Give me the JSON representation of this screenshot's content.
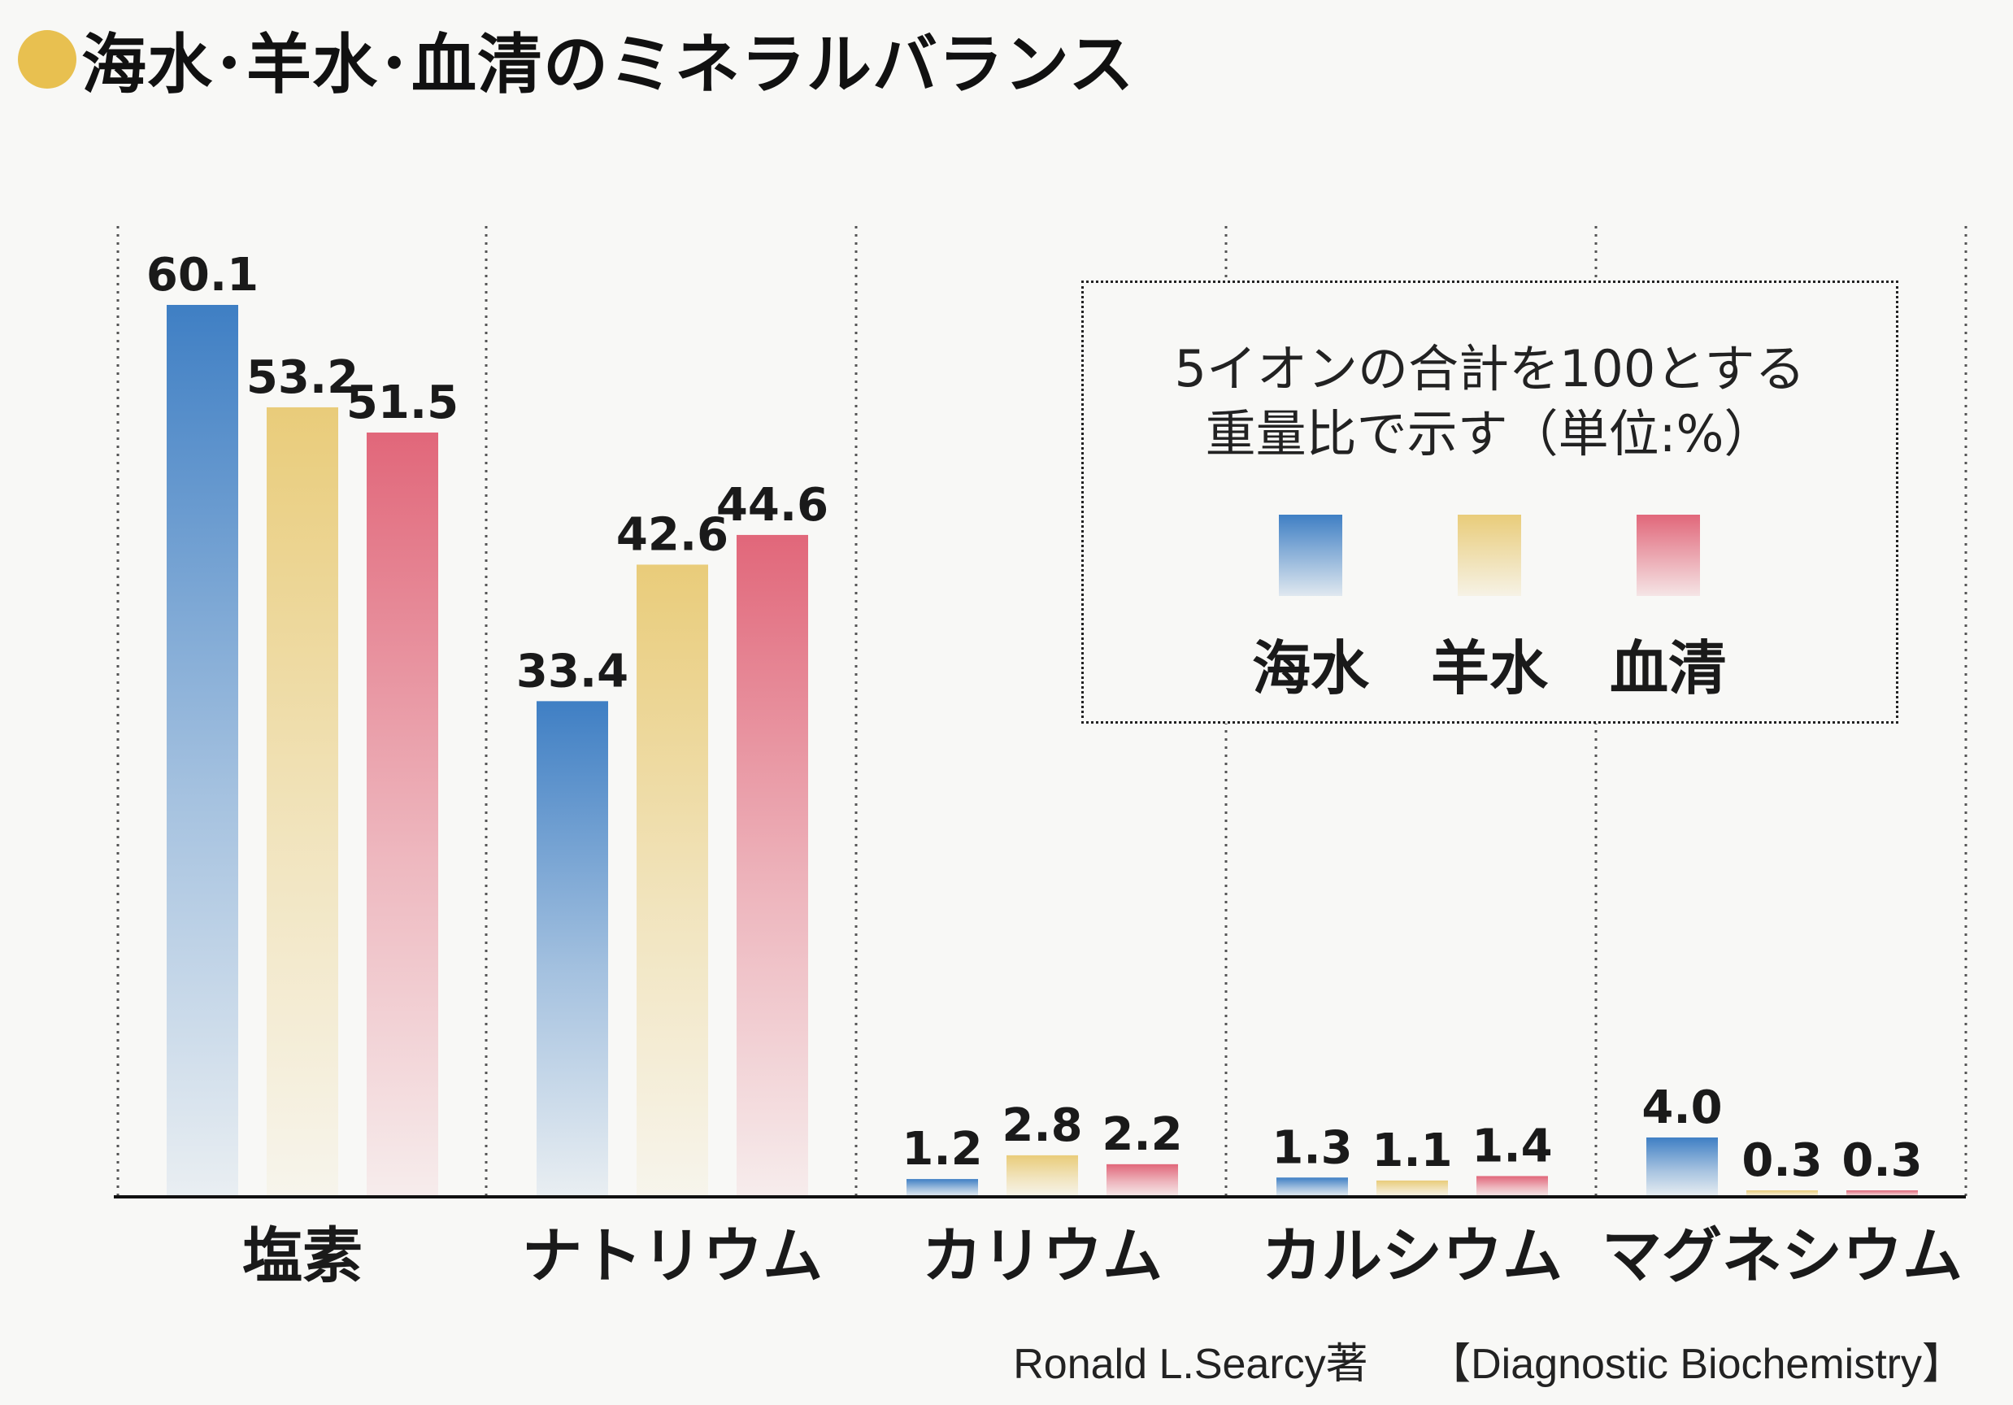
{
  "title": "海水･羊水･血清のミネラルバランス",
  "colors": {
    "title_dot": "#e8c050",
    "seawater": "#3f7fc4",
    "amniotic": "#e9cc7a",
    "serum": "#e1677a"
  },
  "legend": {
    "note_line1": "5イオンの合計を100とする",
    "note_line2": "重量比で示す（単位:%）",
    "items": [
      {
        "label": "海水",
        "color": "#3f7fc4"
      },
      {
        "label": "羊水",
        "color": "#e9cc7a"
      },
      {
        "label": "血清",
        "color": "#e1677a"
      }
    ]
  },
  "source": {
    "author": "Ronald L.Searcy著",
    "book": "【Diagnostic Biochemistry】"
  },
  "chart_data": {
    "type": "bar",
    "title": "海水･羊水･血清のミネラルバランス",
    "categories": [
      "塩素",
      "ナトリウム",
      "カリウム",
      "カルシウム",
      "マグネシウム"
    ],
    "series": [
      {
        "name": "海水",
        "values": [
          60.1,
          33.4,
          1.2,
          1.3,
          4.0
        ],
        "labels": [
          "60.1",
          "33.4",
          "1.2",
          "1.3",
          "4.0"
        ]
      },
      {
        "name": "羊水",
        "values": [
          53.2,
          42.6,
          2.8,
          1.1,
          0.3
        ],
        "labels": [
          "53.2",
          "42.6",
          "2.8",
          "1.1",
          "0.3"
        ]
      },
      {
        "name": "血清",
        "values": [
          51.5,
          44.6,
          2.2,
          1.4,
          0.3
        ],
        "labels": [
          "51.5",
          "44.6",
          "2.2",
          "1.4",
          "0.3"
        ]
      }
    ],
    "ylim": [
      0,
      60.1
    ],
    "xlabel": "",
    "ylabel": "",
    "grid": "vertical dotted separators",
    "legend_placement": "top-right"
  }
}
